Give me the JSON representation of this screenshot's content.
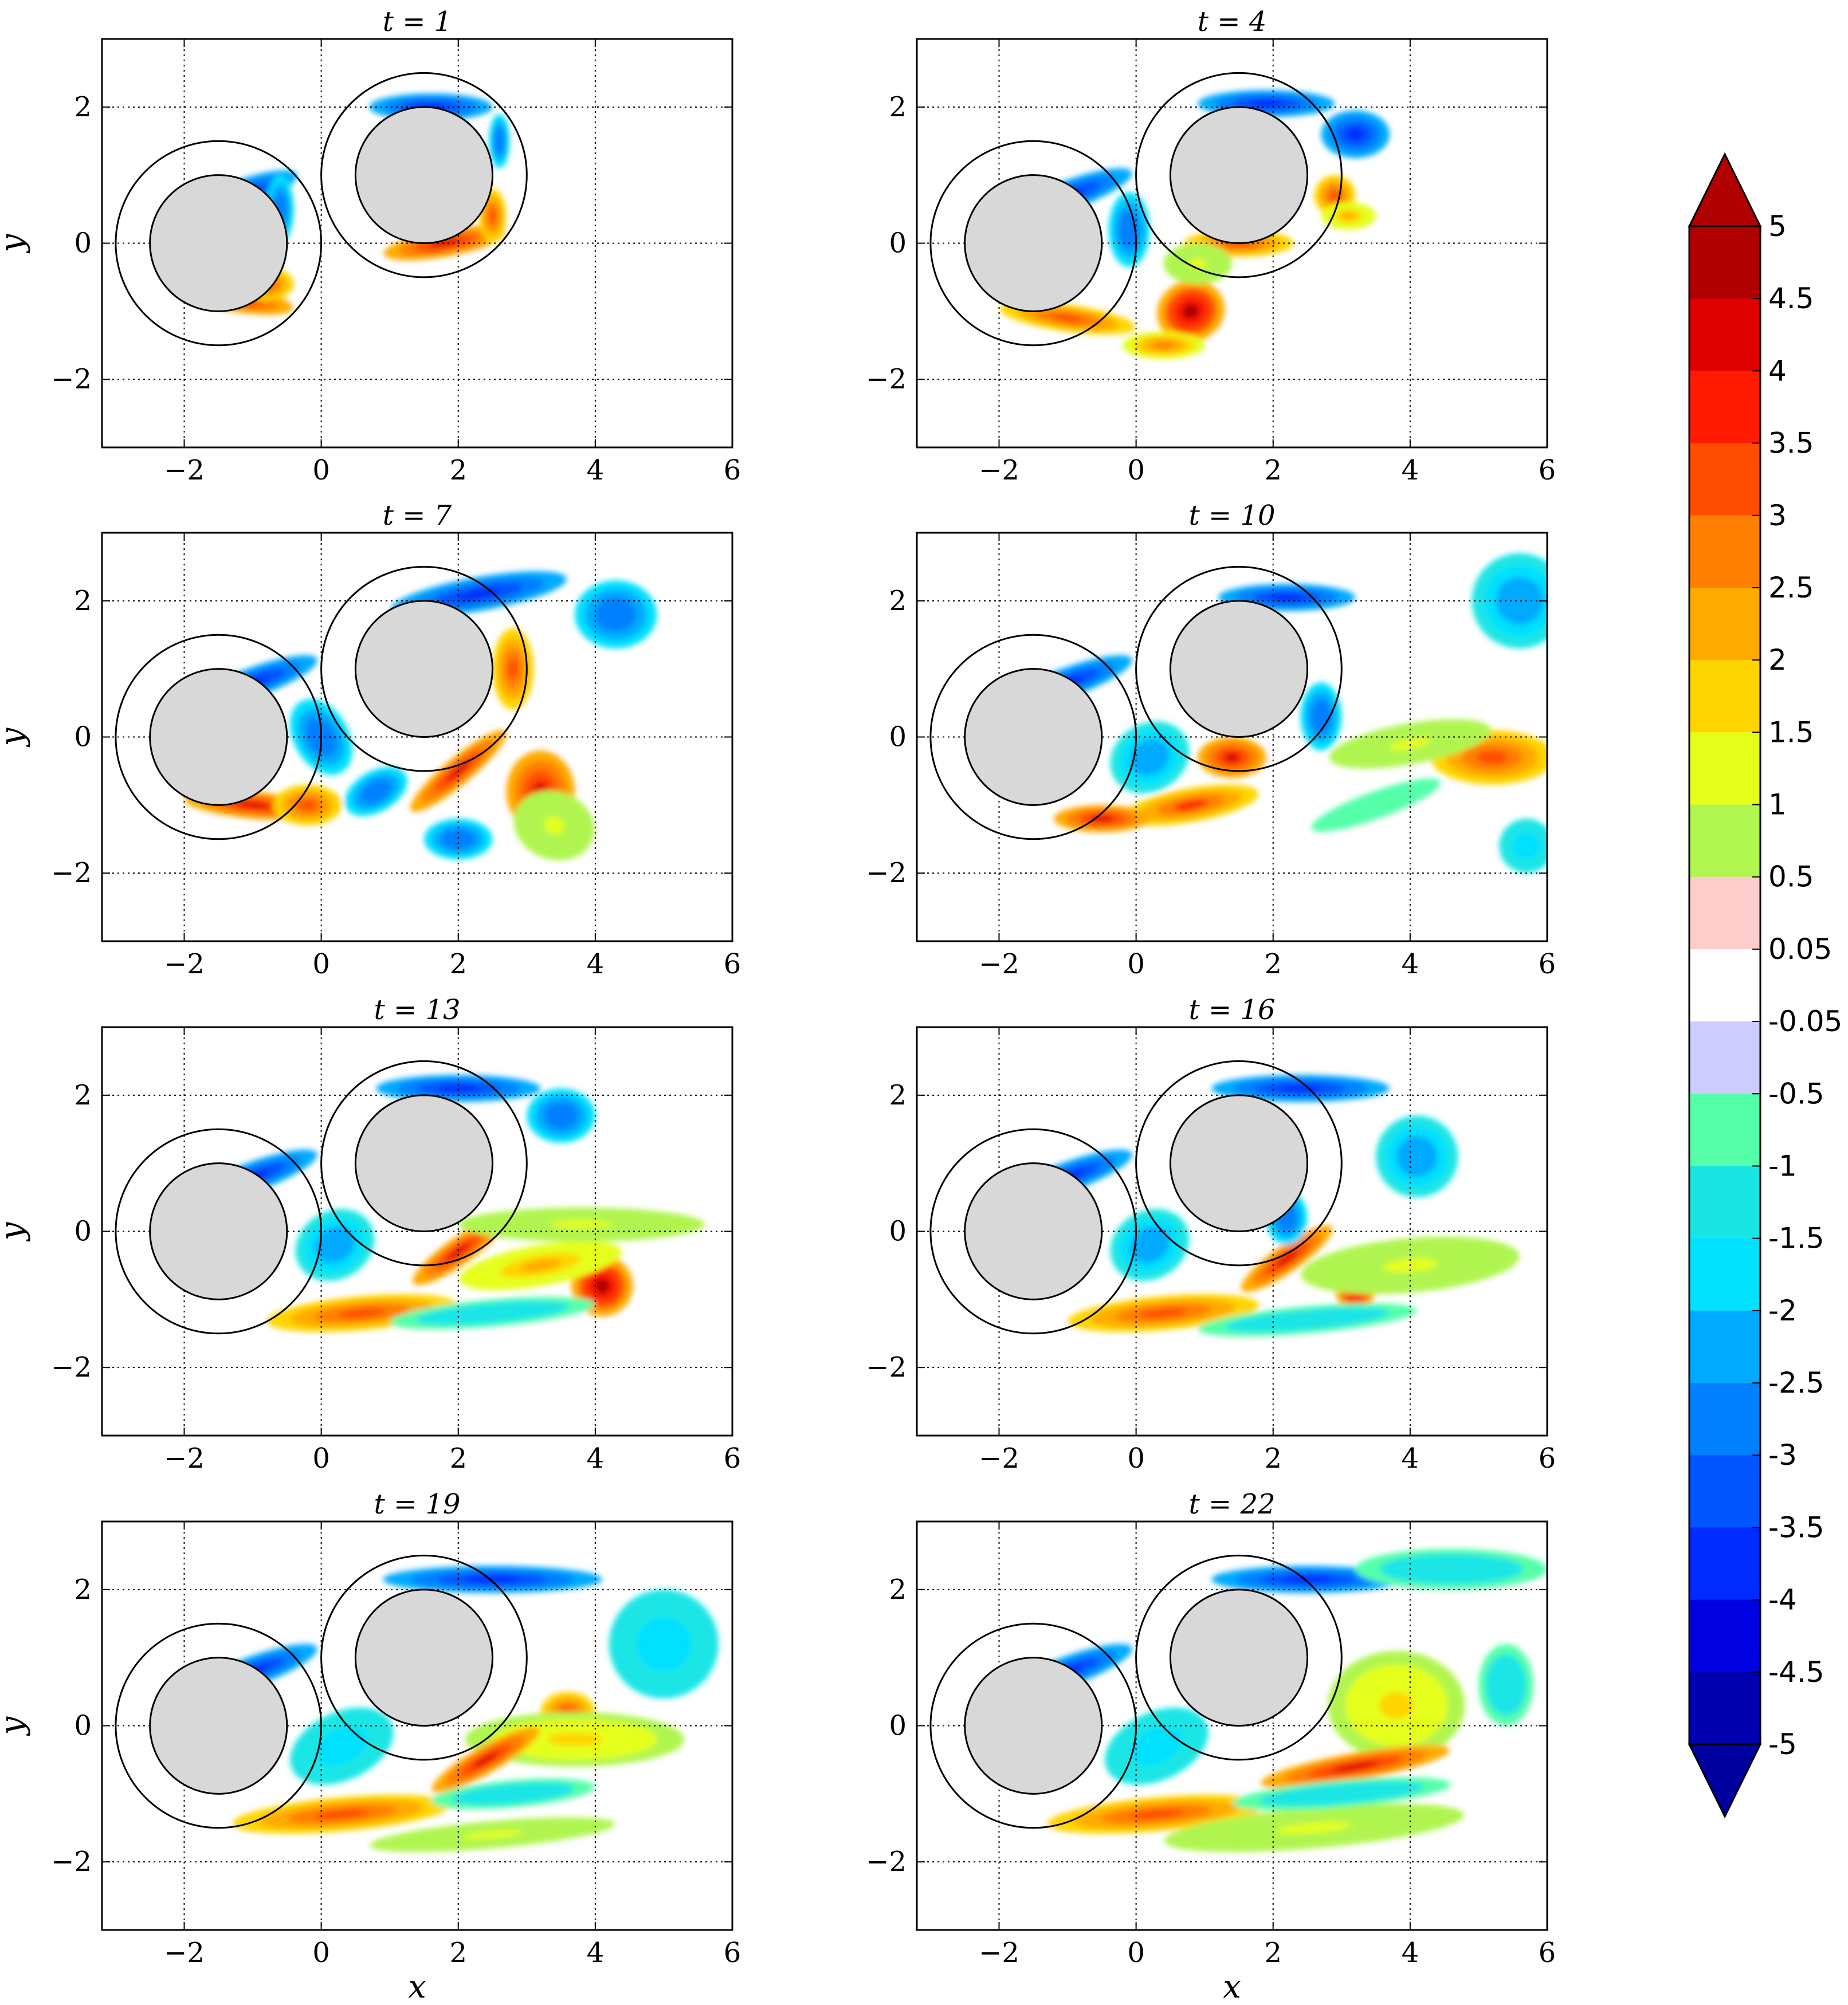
{
  "chart_data": {
    "type": "heatmap",
    "xlim": [
      -3.2,
      6
    ],
    "ylim": [
      -3,
      3
    ],
    "xticks": [
      -2,
      0,
      2,
      4,
      6
    ],
    "yticks": [
      -2,
      0,
      2
    ],
    "xtick_labels": [
      "−2",
      "0",
      "2",
      "4",
      "6"
    ],
    "ytick_labels": [
      "−2",
      "0",
      "2"
    ],
    "xlabel": "x",
    "ylabel": "y",
    "grid": true,
    "cylinders": [
      {
        "cx": -1.5,
        "cy": 0,
        "r": 1,
        "outer_r": 1.5
      },
      {
        "cx": 1.5,
        "cy": 1,
        "r": 1,
        "outer_r": 1.5
      }
    ],
    "panels": [
      {
        "title": "t = 1",
        "t": 1
      },
      {
        "title": "t = 4",
        "t": 4
      },
      {
        "title": "t = 7",
        "t": 7
      },
      {
        "title": "t = 10",
        "t": 10
      },
      {
        "title": "t = 13",
        "t": 13
      },
      {
        "title": "t = 16",
        "t": 16
      },
      {
        "title": "t = 19",
        "t": 19
      },
      {
        "title": "t = 22",
        "t": 22
      }
    ],
    "colorbar": {
      "extend": "both",
      "tick_labels": [
        "5",
        "4.5",
        "4",
        "3.5",
        "3",
        "2.5",
        "2",
        "1.5",
        "1",
        "0.5",
        "0.05",
        "-0.05",
        "-0.5",
        "-1",
        "-1.5",
        "-2",
        "-2.5",
        "-3",
        "-3.5",
        "-4",
        "-4.5",
        "-5"
      ],
      "levels": [
        5,
        4.5,
        4,
        3.5,
        3,
        2.5,
        2,
        1.5,
        1,
        0.5,
        0.05,
        -0.05,
        -0.5,
        -1,
        -1.5,
        -2,
        -2.5,
        -3,
        -3.5,
        -4,
        -4.5,
        -5
      ],
      "colors": [
        "#b00000",
        "#e00000",
        "#ff1a00",
        "#ff4d00",
        "#ff7f00",
        "#ffaa00",
        "#ffd500",
        "#e5ff1a",
        "#b0f550",
        "#ffcccc",
        "#ffffff",
        "#ccccff",
        "#55ffaa",
        "#1ae5e5",
        "#00e0ff",
        "#00aaff",
        "#0080ff",
        "#0055ff",
        "#002bff",
        "#0000e0",
        "#0000b0"
      ],
      "over_color": "#b00000",
      "under_color": "#0000a0"
    }
  }
}
